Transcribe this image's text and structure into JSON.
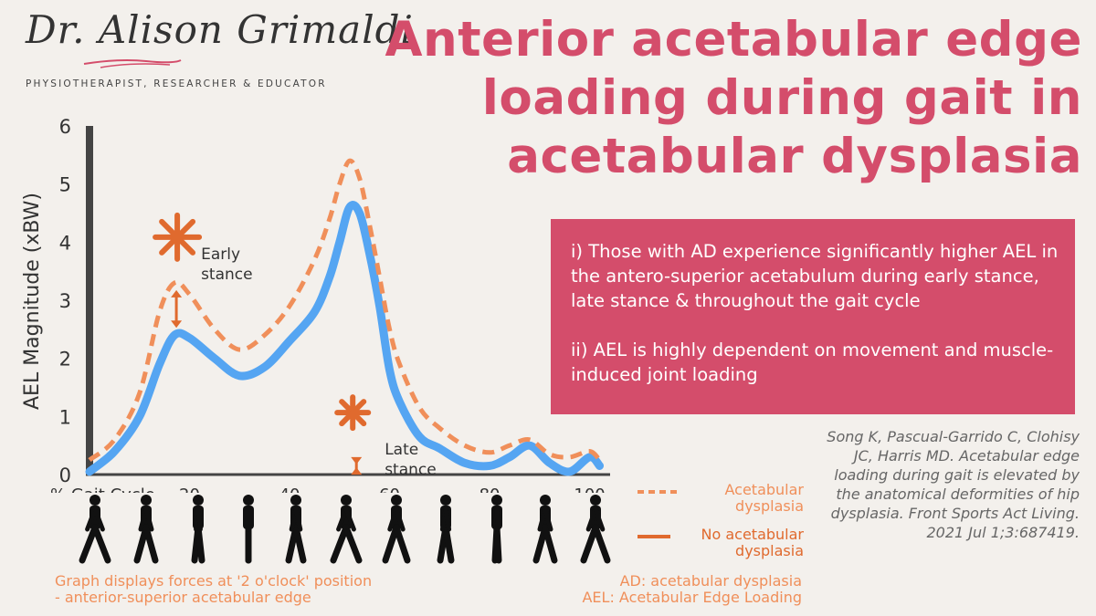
{
  "brand": {
    "name": "Dr. Alison Grimaldi",
    "tagline": "PHYSIOTHERAPIST, RESEARCHER & EDUCATOR"
  },
  "title": "Anterior acetabular edge loading during gait in acetabular dysplasia",
  "findings": [
    "i) Those with AD experience significantly higher AEL in the antero-superior acetabulum during early stance, late stance & throughout the gait cycle",
    "ii)  AEL is highly dependent on movement and muscle-induced joint loading"
  ],
  "citation": "Song K, Pascual-Garrido C, Clohisy JC, Harris MD. Acetabular edge loading during gait is elevated by the anatomical deformities of hip dysplasia. Front Sports Act Living. 2021 Jul 1;3:687419.",
  "notes": {
    "left": [
      "Graph displays forces at '2 o'clock' position",
      "- anterior-superior acetabular edge"
    ],
    "right": [
      "AD: acetabular dysplasia",
      "AEL: Acetabular Edge Loading"
    ]
  },
  "colors": {
    "title": "#d44d6b",
    "ad_series": "#f08f5a",
    "no_ad_series": "#55a5f2",
    "accent": "#e06a2e"
  },
  "chart_data": {
    "type": "line",
    "xlabel": "% Gait Cycle",
    "ylabel": "AEL Magnitude (xBW)",
    "xlim": [
      0,
      103
    ],
    "ylim": [
      0,
      6
    ],
    "xticks": [
      20,
      40,
      60,
      80,
      100
    ],
    "yticks": [
      0,
      1,
      2,
      3,
      4,
      5,
      6
    ],
    "grid": false,
    "series": [
      {
        "name": "Acetabular dysplasia",
        "style": "dashed",
        "x": [
          0,
          5,
          10,
          14,
          17,
          20,
          25,
          30,
          35,
          40,
          45,
          48,
          50,
          52,
          54,
          56,
          58,
          60,
          62,
          66,
          70,
          75,
          80,
          84,
          88,
          92,
          96,
          100,
          102
        ],
        "y": [
          0.25,
          0.6,
          1.4,
          2.8,
          3.3,
          3.1,
          2.5,
          2.15,
          2.4,
          2.9,
          3.7,
          4.4,
          5.0,
          5.4,
          5.1,
          4.3,
          3.4,
          2.5,
          1.9,
          1.15,
          0.8,
          0.5,
          0.38,
          0.5,
          0.6,
          0.35,
          0.3,
          0.4,
          0.25
        ]
      },
      {
        "name": "No acetabular dysplasia",
        "style": "solid",
        "x": [
          0,
          5,
          10,
          14,
          17,
          20,
          25,
          30,
          35,
          40,
          45,
          48,
          50,
          52,
          54,
          56,
          58,
          60,
          62,
          66,
          70,
          75,
          80,
          84,
          88,
          92,
          96,
          100,
          102
        ],
        "y": [
          0.05,
          0.4,
          1.0,
          1.9,
          2.4,
          2.35,
          2.0,
          1.7,
          1.85,
          2.3,
          2.8,
          3.4,
          4.0,
          4.6,
          4.5,
          3.8,
          2.9,
          1.8,
          1.25,
          0.65,
          0.45,
          0.2,
          0.15,
          0.3,
          0.5,
          0.2,
          0.05,
          0.3,
          0.15
        ]
      }
    ],
    "annotations": [
      {
        "text": "Early stance",
        "x": 17
      },
      {
        "text": "Late stance",
        "x": 53
      }
    ]
  }
}
